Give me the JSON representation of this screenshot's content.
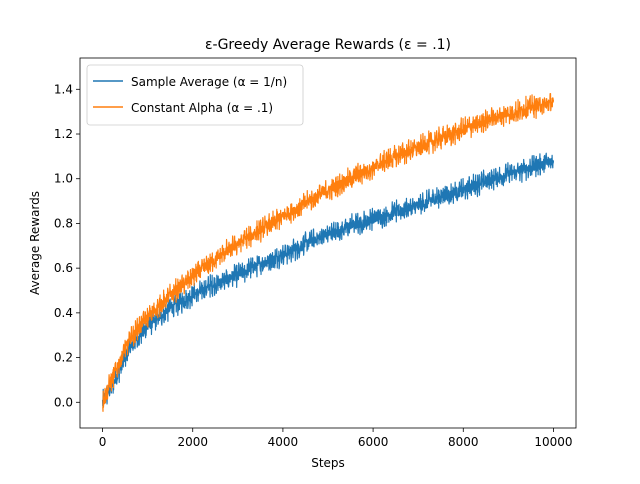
{
  "chart_data": {
    "type": "line",
    "title": "ε-Greedy Average Rewards (ε = .1)",
    "xlabel": "Steps",
    "ylabel": "Average Rewards",
    "xlim": [
      -500,
      10500
    ],
    "ylim": [
      -0.115,
      1.54
    ],
    "xticks": [
      0,
      2000,
      4000,
      6000,
      8000,
      10000
    ],
    "yticks": [
      0.0,
      0.2,
      0.4,
      0.6,
      0.8,
      1.0,
      1.2,
      1.4
    ],
    "xtick_labels": [
      "0",
      "2000",
      "4000",
      "6000",
      "8000",
      "10000"
    ],
    "ytick_labels": [
      "0.0",
      "0.2",
      "0.4",
      "0.6",
      "0.8",
      "1.0",
      "1.2",
      "1.4"
    ],
    "grid": false,
    "legend_position": "top-left",
    "series": [
      {
        "name": "Sample Average (α = 1/n)",
        "color": "#1f77b4",
        "noise": 0.035,
        "x": [
          0,
          250,
          500,
          750,
          1000,
          1500,
          2000,
          2500,
          3000,
          3500,
          4000,
          4500,
          5000,
          5500,
          6000,
          6500,
          7000,
          7500,
          8000,
          8500,
          9000,
          9500,
          10000
        ],
        "y": [
          0.0,
          0.09,
          0.2,
          0.28,
          0.34,
          0.42,
          0.48,
          0.53,
          0.57,
          0.62,
          0.66,
          0.71,
          0.75,
          0.79,
          0.82,
          0.85,
          0.88,
          0.92,
          0.95,
          0.99,
          1.02,
          1.05,
          1.08
        ]
      },
      {
        "name": "Constant Alpha (α = .1)",
        "color": "#ff7f0e",
        "noise": 0.035,
        "x": [
          0,
          250,
          500,
          750,
          1000,
          1500,
          2000,
          2500,
          3000,
          3500,
          4000,
          4500,
          5000,
          5500,
          6000,
          6500,
          7000,
          7500,
          8000,
          8500,
          9000,
          9500,
          10000
        ],
        "y": [
          0.0,
          0.12,
          0.24,
          0.32,
          0.38,
          0.48,
          0.56,
          0.64,
          0.71,
          0.77,
          0.83,
          0.89,
          0.95,
          1.0,
          1.05,
          1.1,
          1.14,
          1.18,
          1.22,
          1.26,
          1.29,
          1.32,
          1.34
        ]
      }
    ]
  }
}
